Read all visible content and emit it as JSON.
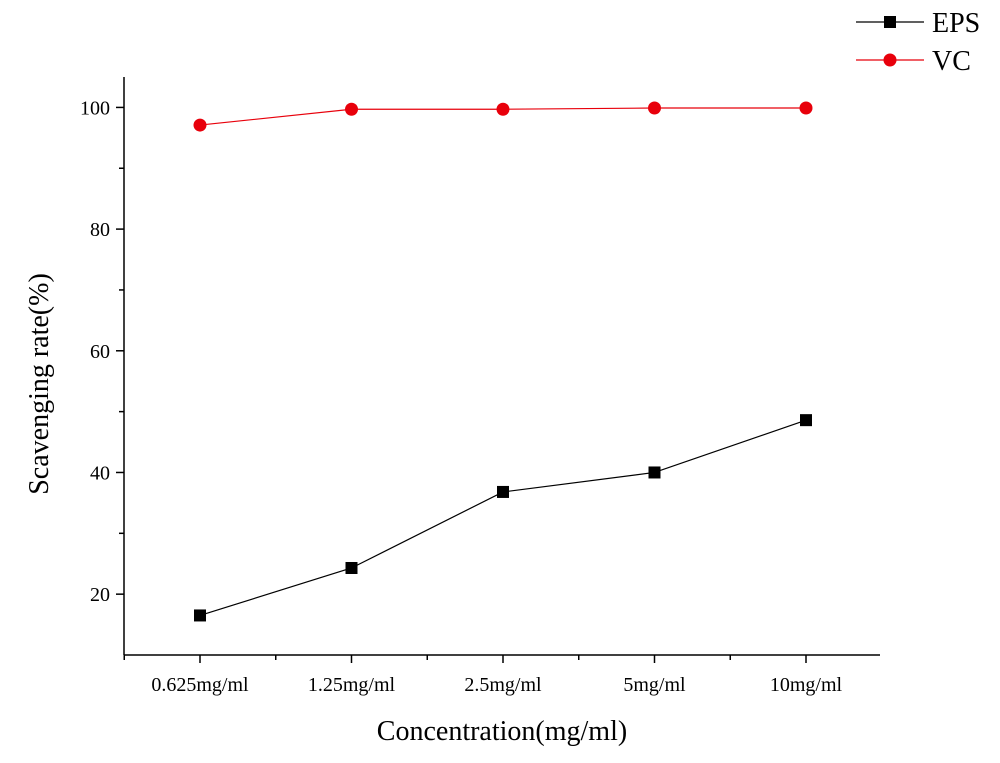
{
  "chart_data": {
    "type": "line",
    "categories": [
      "0.625mg/ml",
      "1.25mg/ml",
      "2.5mg/ml",
      "5mg/ml",
      "10mg/ml"
    ],
    "series": [
      {
        "name": "EPS",
        "values": [
          16.5,
          24.3,
          36.8,
          40.0,
          48.6
        ],
        "color": "#000000",
        "marker": "square"
      },
      {
        "name": "VC",
        "values": [
          97.1,
          99.7,
          99.7,
          99.9,
          99.9
        ],
        "color": "#e8000b",
        "marker": "circle"
      }
    ],
    "xlabel": "Concentration(mg/ml)",
    "ylabel": "Scavenging rate(%)",
    "ylim": [
      10,
      105
    ],
    "yticks": [
      20,
      40,
      60,
      80,
      100
    ],
    "legend_position": "top-right",
    "grid": false
  }
}
